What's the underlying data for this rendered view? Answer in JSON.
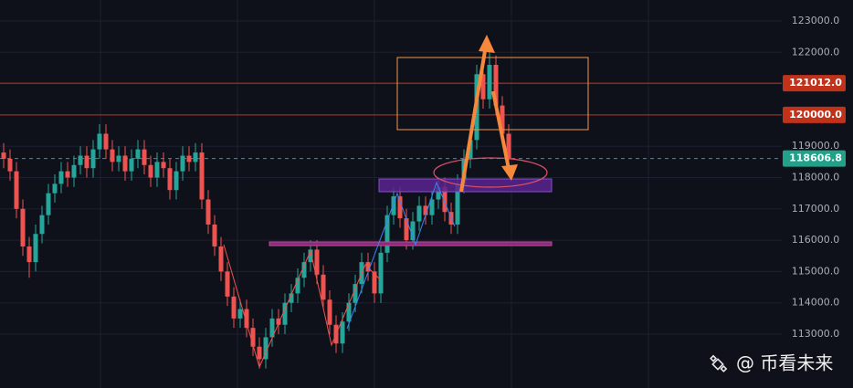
{
  "chart_data": {
    "type": "candlestick",
    "ylim": [
      111280,
      123670
    ],
    "yticks": [
      {
        "value": 113000,
        "label": "113000.0"
      },
      {
        "value": 114000,
        "label": "114000.0"
      },
      {
        "value": 115000,
        "label": "115000.0"
      },
      {
        "value": 116000,
        "label": "116000.0"
      },
      {
        "value": 117000,
        "label": "117000.0"
      },
      {
        "value": 118000,
        "label": "118000.0"
      },
      {
        "value": 119000,
        "label": "119000.0"
      },
      {
        "value": 120000,
        "label": "120000.0"
      },
      {
        "value": 121000,
        "label": "121000.0"
      },
      {
        "value": 122000,
        "label": "122000.0"
      },
      {
        "value": 123000,
        "label": "123000.0"
      }
    ],
    "grid": true,
    "up_color": "#26a69a",
    "down_color": "#ef5350",
    "open": [
      118800,
      118600,
      118200,
      117000,
      115800,
      115300,
      116200,
      116800,
      117500,
      117800,
      118200,
      118000,
      118400,
      118700,
      118300,
      118900,
      119400,
      118900,
      118500,
      118700,
      118200,
      118600,
      118900,
      118400,
      118000,
      118500,
      118300,
      117600,
      118200,
      118700,
      118500,
      118800,
      117300,
      116500,
      115800,
      115000,
      114200,
      113500,
      113800,
      113200,
      112600,
      112200,
      112900,
      113500,
      113300,
      114000,
      114300,
      114800,
      115300,
      115700,
      114900,
      114100,
      113300,
      112700,
      113400,
      114000,
      114600,
      115300,
      115000,
      114300,
      115600,
      116800,
      117400,
      116700,
      116000,
      116600,
      117100,
      116800,
      117300,
      117700,
      116900,
      116500,
      117800,
      118600,
      119200,
      121300,
      120500,
      121600,
      120300,
      119400
    ],
    "high": [
      119100,
      118900,
      118500,
      117300,
      116100,
      116500,
      117100,
      117800,
      118100,
      118500,
      118500,
      118700,
      119000,
      119000,
      119200,
      119700,
      119700,
      119200,
      119000,
      119000,
      118900,
      119200,
      119200,
      118700,
      118800,
      118800,
      118600,
      118500,
      119000,
      119000,
      119100,
      119100,
      117600,
      116800,
      116100,
      115300,
      114500,
      114100,
      114100,
      113500,
      112900,
      113200,
      113800,
      113800,
      114300,
      114600,
      115100,
      115600,
      116000,
      116000,
      115200,
      114400,
      113600,
      113700,
      114300,
      114900,
      115600,
      115600,
      115300,
      115900,
      117100,
      117700,
      117700,
      117000,
      116900,
      117400,
      117400,
      117600,
      118000,
      118000,
      117200,
      118100,
      118900,
      119500,
      121600,
      121600,
      122000,
      121900,
      120600,
      119700
    ],
    "low": [
      118300,
      117900,
      116700,
      115500,
      114800,
      115000,
      115900,
      116500,
      117200,
      117500,
      117700,
      117700,
      118100,
      118000,
      118000,
      118600,
      118600,
      118200,
      118200,
      117900,
      117900,
      118300,
      118100,
      117700,
      117700,
      118000,
      117300,
      117300,
      117900,
      118200,
      118200,
      117000,
      116200,
      115500,
      114700,
      113900,
      113200,
      113200,
      112900,
      112300,
      111900,
      111900,
      112600,
      113000,
      113000,
      113700,
      114000,
      114500,
      115000,
      114600,
      113800,
      113000,
      112400,
      112400,
      113100,
      113700,
      114300,
      114700,
      114000,
      114000,
      115300,
      116500,
      116400,
      115700,
      115700,
      116300,
      116500,
      116500,
      117000,
      116600,
      116200,
      116200,
      117500,
      118300,
      118900,
      120200,
      120200,
      120000,
      119100,
      118300
    ],
    "close": [
      118600,
      118200,
      117000,
      115800,
      115300,
      116200,
      116800,
      117500,
      117800,
      118200,
      118000,
      118400,
      118700,
      118300,
      118900,
      119400,
      118900,
      118500,
      118700,
      118200,
      118600,
      118900,
      118400,
      118000,
      118500,
      118300,
      117600,
      118200,
      118700,
      118500,
      118800,
      117300,
      116500,
      115800,
      115000,
      114200,
      113500,
      113800,
      113200,
      112600,
      112200,
      112900,
      113500,
      113300,
      114000,
      114300,
      114800,
      115300,
      115700,
      114900,
      114100,
      113300,
      112700,
      113400,
      114000,
      114600,
      115300,
      115000,
      114300,
      115600,
      116800,
      117400,
      116700,
      116000,
      116600,
      117100,
      116800,
      117300,
      117700,
      116900,
      116500,
      117800,
      118600,
      119200,
      121300,
      120500,
      121600,
      120300,
      119400,
      118606.8
    ],
    "price_lines": [
      {
        "value": 121012,
        "label": "121012.0",
        "color": "#c0321a",
        "dashed": false
      },
      {
        "value": 120000,
        "label": "120000.0",
        "color": "#c0321a",
        "dashed": false
      },
      {
        "value": 118606.8,
        "label": "118606.8",
        "color": "#22a08a",
        "dashed": true
      }
    ],
    "watermark": "@ 币看未来"
  }
}
